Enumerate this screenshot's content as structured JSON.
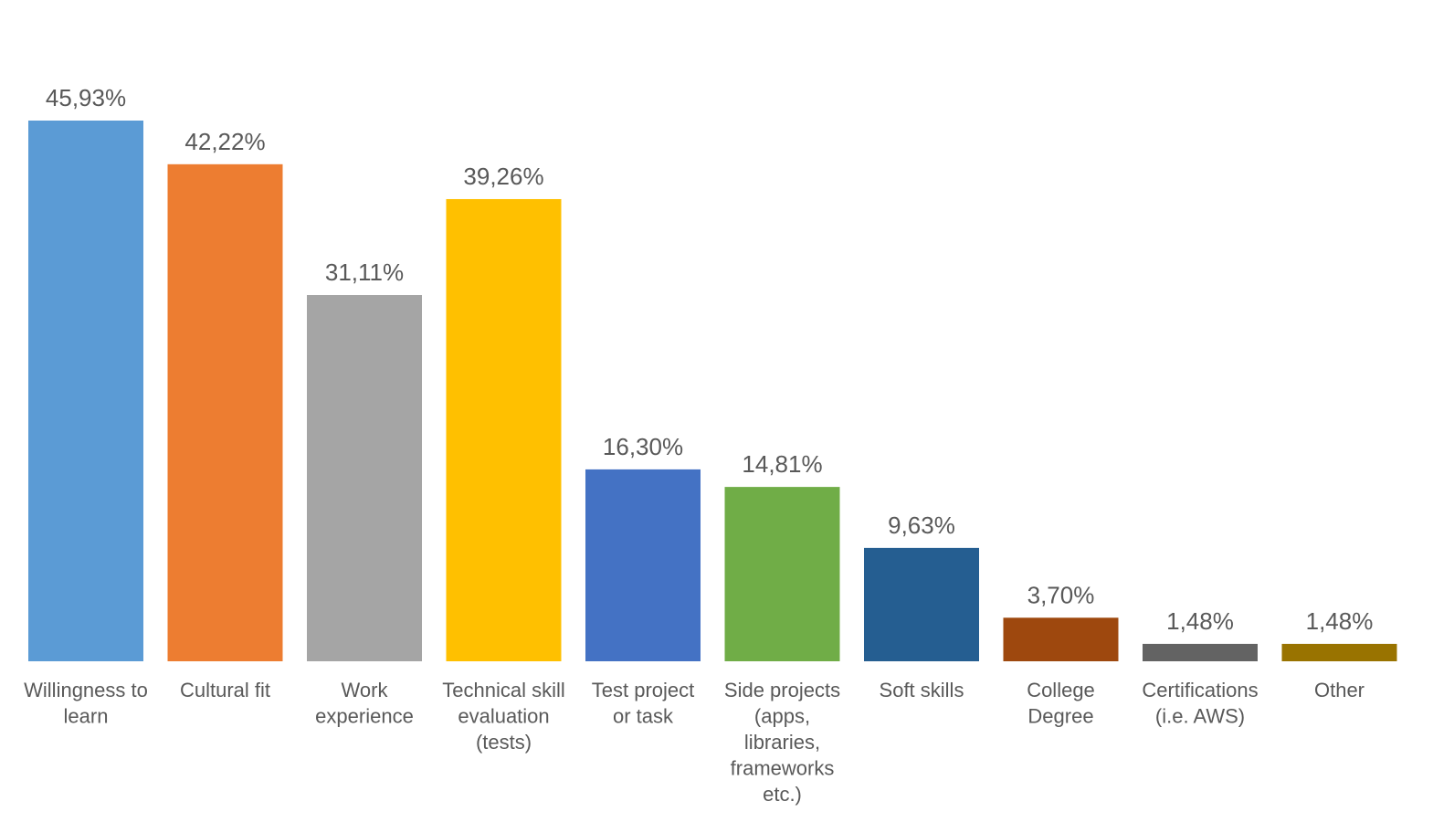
{
  "chart_data": {
    "type": "bar",
    "title": "",
    "xlabel": "",
    "ylabel": "",
    "ylim": [
      0,
      46
    ],
    "grid": false,
    "legend": "none",
    "categories": [
      [
        "Willingness to",
        "learn"
      ],
      [
        "Cultural fit"
      ],
      [
        "Work",
        "experience"
      ],
      [
        "Technical skill",
        "evaluation",
        "(tests)"
      ],
      [
        "Test project",
        "or task"
      ],
      [
        "Side projects",
        "(apps,",
        "libraries,",
        "frameworks",
        "etc.)"
      ],
      [
        "Soft skills"
      ],
      [
        "College",
        "Degree"
      ],
      [
        "Certifications",
        "(i.e. AWS)"
      ],
      [
        "Other"
      ]
    ],
    "values": [
      45.93,
      42.22,
      31.11,
      39.26,
      16.3,
      14.81,
      9.63,
      3.7,
      1.48,
      1.48
    ],
    "data_labels": [
      "45,93%",
      "42,22%",
      "31,11%",
      "39,26%",
      "16,30%",
      "14,81%",
      "9,63%",
      "3,70%",
      "1,48%",
      "1,48%"
    ],
    "colors": [
      "#5B9BD5",
      "#ED7D31",
      "#A5A5A5",
      "#FFC000",
      "#4472C4",
      "#70AD47",
      "#255E91",
      "#9E480E",
      "#636363",
      "#997300"
    ]
  }
}
